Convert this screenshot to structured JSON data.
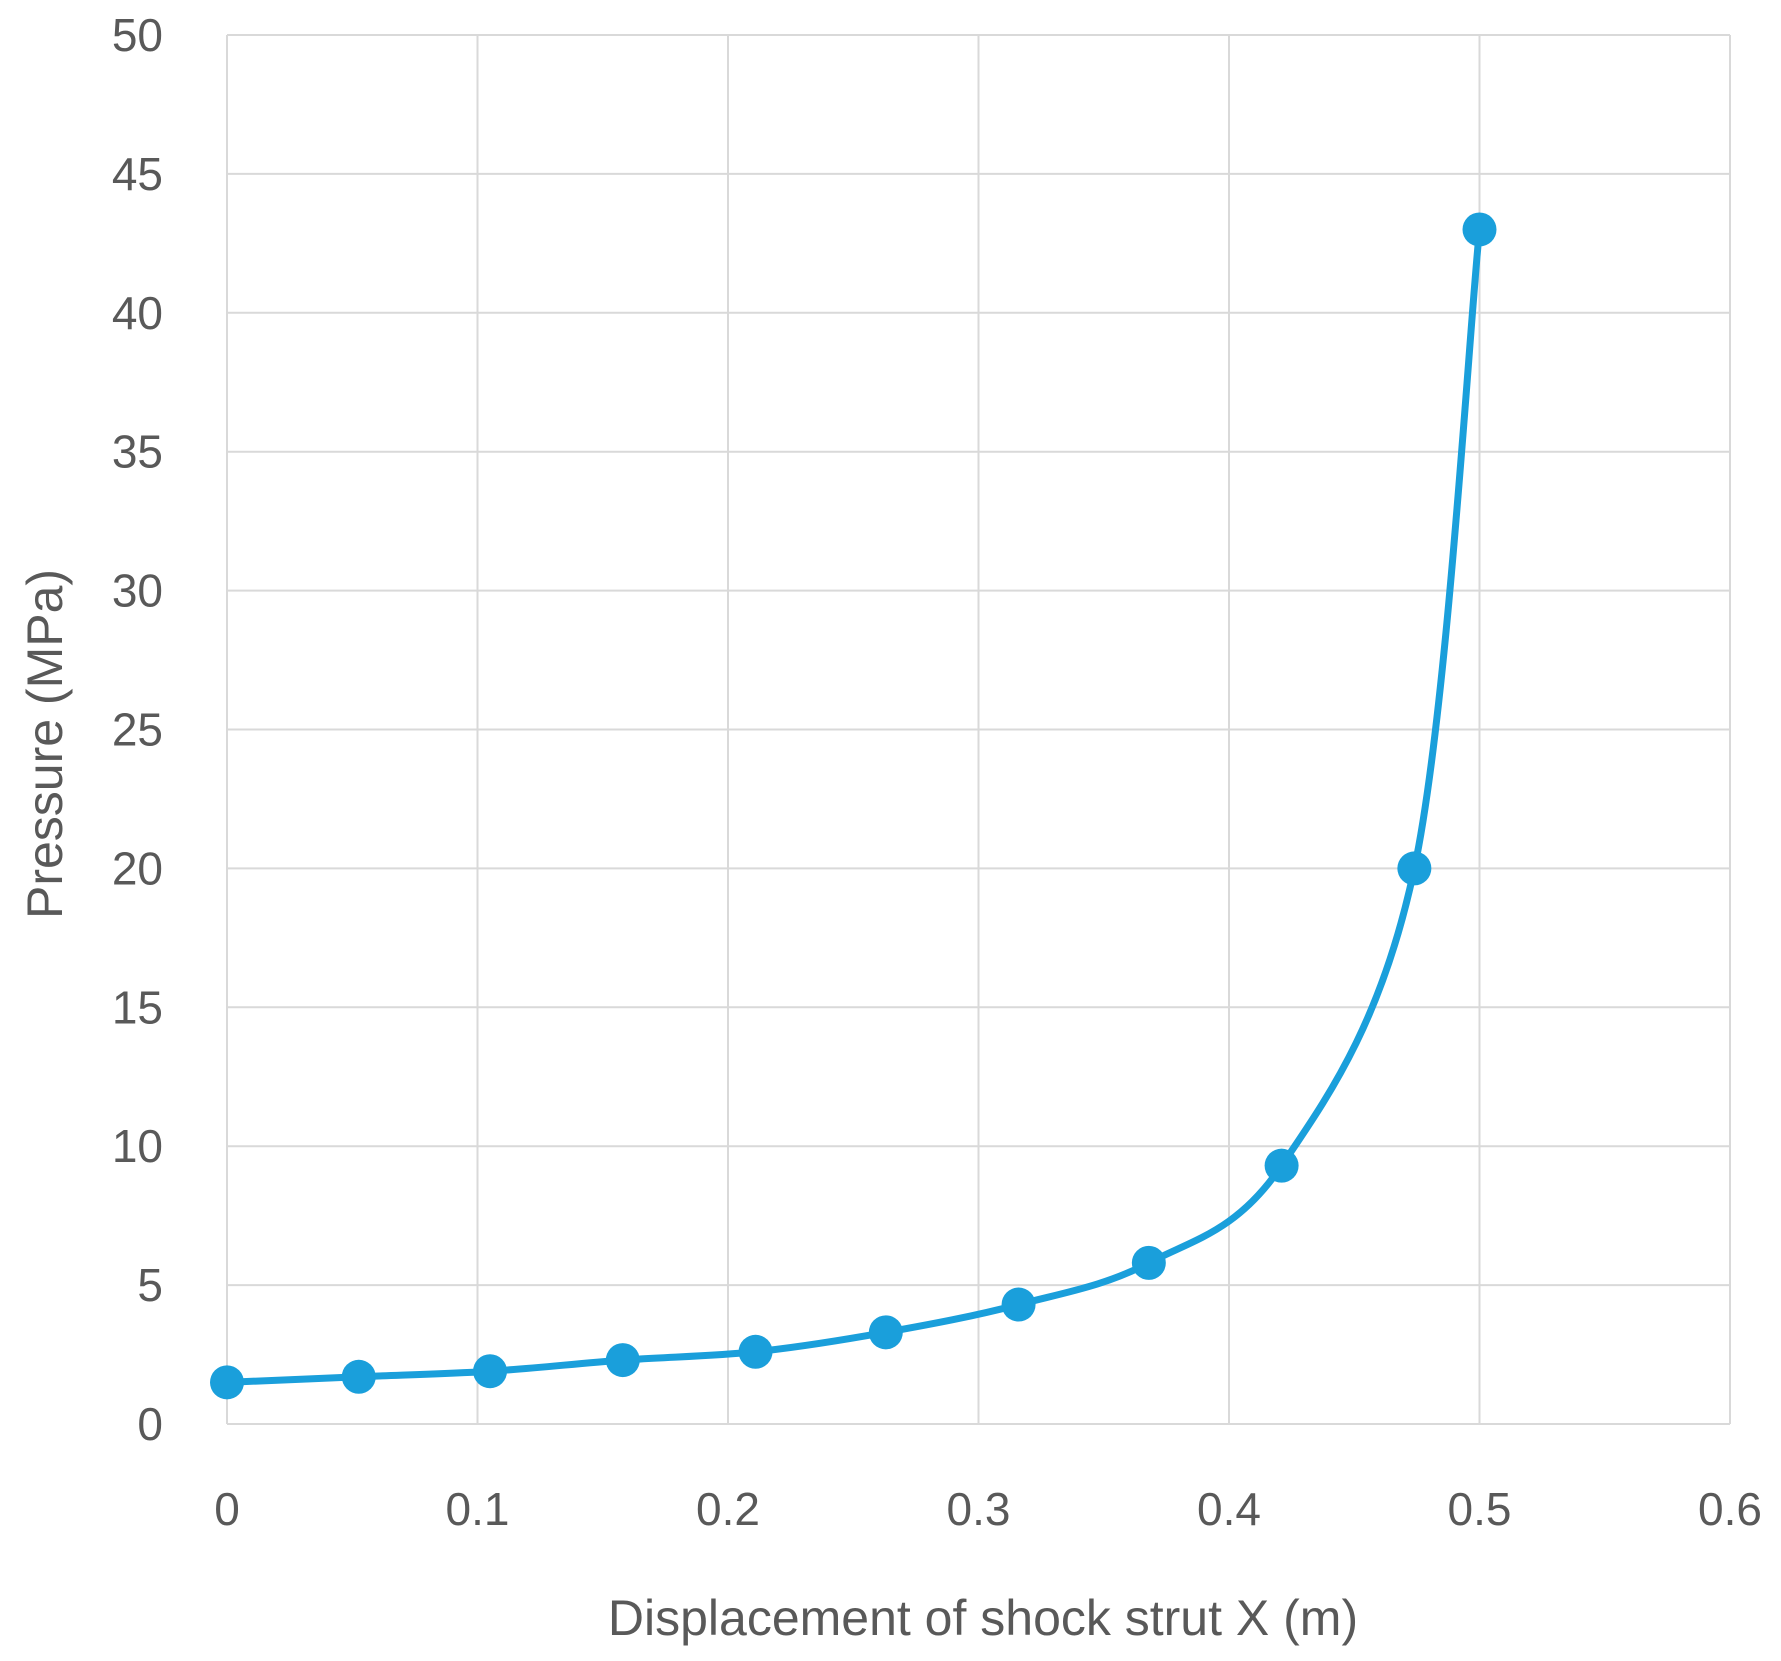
{
  "chart_data": {
    "type": "line",
    "title": "",
    "xlabel": "Displacement of shock strut X (m)",
    "ylabel": "Pressure (MPa)",
    "xlim": [
      0,
      0.6
    ],
    "ylim": [
      0,
      50
    ],
    "xticks": [
      "0",
      "0.1",
      "0.2",
      "0.3",
      "0.4",
      "0.5",
      "0.6"
    ],
    "yticks": [
      "0",
      "5",
      "10",
      "15",
      "20",
      "25",
      "30",
      "35",
      "40",
      "45",
      "50"
    ],
    "grid": true,
    "legend": "none",
    "smooth": true,
    "series": [
      {
        "color": "#1a9fdb",
        "marker": "circle",
        "x": [
          0,
          0.0526,
          0.105,
          0.158,
          0.211,
          0.263,
          0.316,
          0.368,
          0.421,
          0.474,
          0.5
        ],
        "y": [
          1.5,
          1.7,
          1.9,
          2.3,
          2.6,
          3.3,
          4.3,
          5.8,
          9.3,
          20.0,
          43.0
        ]
      }
    ]
  }
}
